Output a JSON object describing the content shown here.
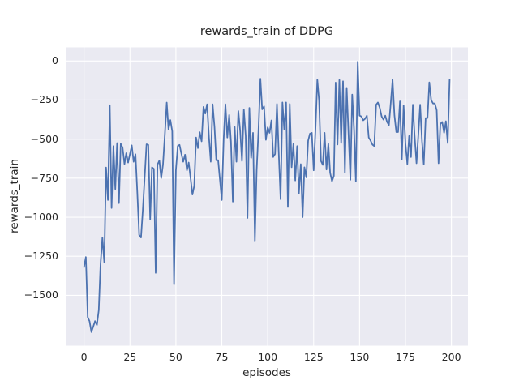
{
  "figure": {
    "background_color": "#ffffff"
  },
  "chart_data": {
    "type": "line",
    "title": "rewards_train of DDPG",
    "xlabel": "episodes",
    "ylabel": "rewards_train",
    "legend": "none",
    "grid": true,
    "style": "seaborn-darkgrid",
    "plot_bg_color": "#eaeaf2",
    "grid_color": "#ffffff",
    "line_color": "#4c72b0",
    "text_color": "#262626",
    "x_ticks": [
      0,
      25,
      50,
      75,
      100,
      125,
      150,
      175,
      200
    ],
    "y_ticks": [
      0,
      -250,
      -500,
      -750,
      -1000,
      -1250,
      -1500
    ],
    "xlim": [
      -10,
      209
    ],
    "ylim": [
      -1822,
      87
    ],
    "series": [
      {
        "name": "rewards_train",
        "x_start": 0,
        "x_step": 1,
        "values": [
          -1320,
          -1255,
          -1640,
          -1665,
          -1735,
          -1700,
          -1665,
          -1690,
          -1595,
          -1300,
          -1130,
          -1290,
          -682,
          -890,
          -283,
          -941,
          -545,
          -820,
          -525,
          -910,
          -530,
          -555,
          -660,
          -590,
          -650,
          -594,
          -540,
          -645,
          -597,
          -838,
          -1113,
          -1130,
          -955,
          -745,
          -533,
          -537,
          -1015,
          -680,
          -690,
          -1356,
          -663,
          -637,
          -750,
          -663,
          -470,
          -266,
          -438,
          -378,
          -450,
          -1430,
          -700,
          -545,
          -537,
          -594,
          -645,
          -600,
          -700,
          -650,
          -750,
          -855,
          -800,
          -490,
          -558,
          -456,
          -515,
          -294,
          -337,
          -277,
          -490,
          -645,
          -277,
          -422,
          -635,
          -635,
          -760,
          -890,
          -500,
          -277,
          -490,
          -345,
          -515,
          -900,
          -422,
          -645,
          -320,
          -450,
          -640,
          -310,
          -480,
          -1005,
          -300,
          -620,
          -460,
          -1150,
          -700,
          -438,
          -113,
          -310,
          -290,
          -505,
          -425,
          -460,
          -380,
          -615,
          -595,
          -275,
          -585,
          -885,
          -265,
          -438,
          -265,
          -935,
          -275,
          -680,
          -530,
          -765,
          -545,
          -850,
          -660,
          -1000,
          -680,
          -745,
          -510,
          -465,
          -460,
          -700,
          -440,
          -120,
          -255,
          -640,
          -665,
          -460,
          -695,
          -530,
          -715,
          -770,
          -735,
          -138,
          -535,
          -121,
          -525,
          -130,
          -715,
          -172,
          -470,
          -760,
          -215,
          -440,
          -770,
          -5,
          -350,
          -355,
          -380,
          -370,
          -350,
          -490,
          -510,
          -535,
          -545,
          -280,
          -265,
          -300,
          -355,
          -375,
          -350,
          -390,
          -410,
          -265,
          -120,
          -348,
          -455,
          -455,
          -258,
          -630,
          -285,
          -530,
          -660,
          -480,
          -615,
          -280,
          -480,
          -655,
          -480,
          -280,
          -513,
          -663,
          -365,
          -365,
          -137,
          -250,
          -272,
          -272,
          -315,
          -655,
          -403,
          -390,
          -460,
          -385,
          -525,
          -120
        ]
      }
    ]
  }
}
